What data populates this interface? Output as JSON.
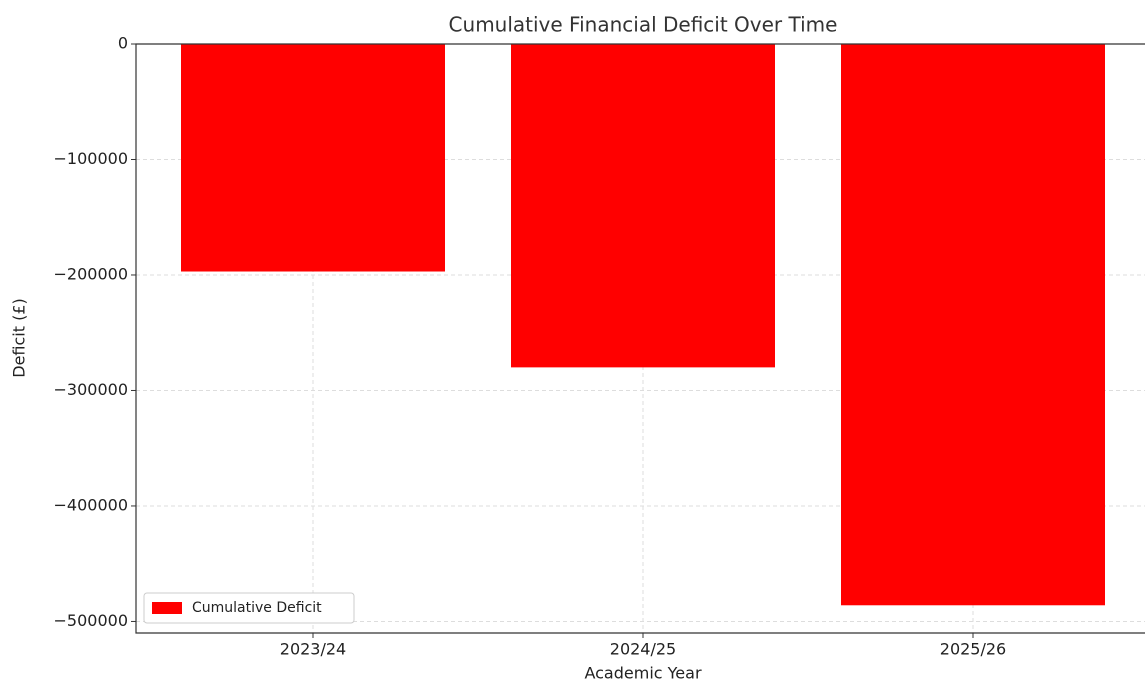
{
  "chart_data": {
    "type": "bar",
    "title": "Cumulative Financial Deficit Over Time",
    "x_label": "Academic Year",
    "y_label": "Deficit (£)",
    "categories": [
      "2023/24",
      "2024/25",
      "2025/26"
    ],
    "series": [
      {
        "name": "Cumulative Deficit",
        "color": "#ff0000",
        "values": [
          -197000,
          -280000,
          -486000
        ]
      }
    ],
    "ylim": [
      -510000,
      0
    ],
    "yticks": [
      0,
      {
        "value": -100000,
        "label": "−100000"
      },
      {
        "value": -200000,
        "label": "−200000"
      },
      {
        "value": -300000,
        "label": "−300000"
      },
      {
        "value": -400000,
        "label": "−400000"
      },
      {
        "value": -500000,
        "label": "−500000"
      }
    ],
    "grid": true,
    "legend": "lower left"
  }
}
